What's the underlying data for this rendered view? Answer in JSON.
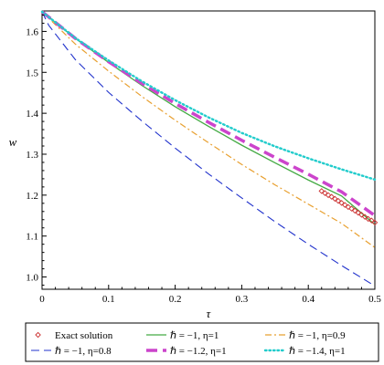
{
  "chart_data": {
    "type": "line",
    "title": "",
    "xlabel": "τ",
    "ylabel": "w",
    "xlim": [
      0,
      0.5
    ],
    "ylim": [
      0.97,
      1.65
    ],
    "x_ticks": [
      0,
      0.1,
      0.2,
      0.3,
      0.4,
      0.5
    ],
    "x_tick_labels": [
      "0",
      "0.1",
      "0.2",
      "0.3",
      "0.4",
      "0.5"
    ],
    "y_ticks": [
      1.0,
      1.1,
      1.2,
      1.3,
      1.4,
      1.5,
      1.6
    ],
    "y_tick_labels": [
      "1.0",
      "1.1",
      "1.2",
      "1.3",
      "1.4",
      "1.5",
      "1.6"
    ],
    "grid": false,
    "legend_position": "bottom",
    "series": [
      {
        "name": "Exact solution",
        "style": "markers",
        "color": "#cc3333",
        "x": [
          0.42,
          0.425,
          0.43,
          0.435,
          0.44,
          0.445,
          0.45,
          0.455,
          0.46,
          0.465,
          0.47,
          0.475,
          0.48,
          0.485,
          0.49,
          0.495,
          0.5
        ],
        "y": [
          1.21,
          1.205,
          1.2,
          1.196,
          1.191,
          1.186,
          1.181,
          1.176,
          1.171,
          1.167,
          1.162,
          1.157,
          1.152,
          1.147,
          1.142,
          1.138,
          1.133
        ]
      },
      {
        "name": "ℏ = −1, η=1",
        "style": "solid",
        "color": "#44aa44",
        "x": [
          0,
          0.05,
          0.1,
          0.15,
          0.2,
          0.25,
          0.3,
          0.35,
          0.4,
          0.45,
          0.5
        ],
        "y": [
          1.648,
          1.583,
          1.524,
          1.468,
          1.416,
          1.368,
          1.322,
          1.279,
          1.237,
          1.198,
          1.128
        ]
      },
      {
        "name": "ℏ = −1, η=0.9",
        "style": "dashdot",
        "color": "#e8a030",
        "x": [
          0,
          0.05,
          0.1,
          0.15,
          0.2,
          0.25,
          0.3,
          0.35,
          0.4,
          0.45,
          0.5
        ],
        "y": [
          1.648,
          1.569,
          1.503,
          1.441,
          1.383,
          1.328,
          1.275,
          1.225,
          1.178,
          1.131,
          1.072
        ]
      },
      {
        "name": "ℏ = −1, η=0.8",
        "style": "longdash",
        "color": "#2233cc",
        "x": [
          0,
          0.01,
          0.05,
          0.1,
          0.15,
          0.2,
          0.25,
          0.3,
          0.35,
          0.4,
          0.45,
          0.5
        ],
        "y": [
          1.648,
          1.615,
          1.531,
          1.451,
          1.381,
          1.315,
          1.252,
          1.193,
          1.135,
          1.08,
          1.028,
          0.978
        ]
      },
      {
        "name": "ℏ = −1.2, η=1",
        "style": "thickdash",
        "color": "#cc44cc",
        "x": [
          0,
          0.05,
          0.1,
          0.15,
          0.2,
          0.25,
          0.3,
          0.35,
          0.4,
          0.45,
          0.5
        ],
        "y": [
          1.648,
          1.583,
          1.526,
          1.473,
          1.424,
          1.378,
          1.334,
          1.292,
          1.251,
          1.208,
          1.15
        ]
      },
      {
        "name": "ℏ = −1.4, η=1",
        "style": "dotted",
        "color": "#22cccc",
        "x": [
          0,
          0.05,
          0.1,
          0.15,
          0.2,
          0.25,
          0.3,
          0.35,
          0.4,
          0.45,
          0.5
        ],
        "y": [
          1.648,
          1.584,
          1.529,
          1.478,
          1.432,
          1.39,
          1.352,
          1.319,
          1.29,
          1.263,
          1.238
        ]
      }
    ]
  }
}
